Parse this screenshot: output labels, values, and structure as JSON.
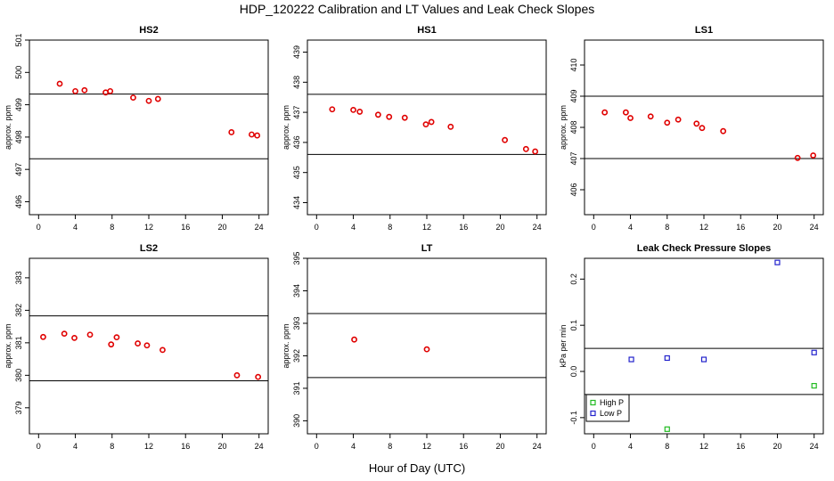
{
  "figure": {
    "title": "HDP_120222  Calibration and LT Values and Leak Check Slopes",
    "xlabel": "Hour of Day (UTC)"
  },
  "colors": {
    "points": "#e00000",
    "axis": "#000000",
    "high_p": "#22bb22",
    "low_p": "#2222cc"
  },
  "chart_data": [
    {
      "type": "scatter",
      "title": "HS2",
      "ylabel": "approx. ppm",
      "xlim": [
        -1,
        25
      ],
      "ylim": [
        495.6,
        501
      ],
      "xticks": [
        0,
        4,
        8,
        12,
        16,
        20,
        24
      ],
      "yticks": [
        496,
        497,
        498,
        499,
        500,
        501
      ],
      "hlines": [
        499.33,
        497.33
      ],
      "x": [
        2.3,
        4.0,
        5.0,
        7.3,
        7.8,
        10.3,
        12.0,
        13.0,
        21.0,
        23.2,
        23.8
      ],
      "y": [
        499.65,
        499.42,
        499.45,
        499.38,
        499.42,
        499.22,
        499.12,
        499.18,
        498.15,
        498.08,
        498.05
      ]
    },
    {
      "type": "scatter",
      "title": "HS1",
      "ylabel": "approx. ppm",
      "xlim": [
        -1,
        25
      ],
      "ylim": [
        433.6,
        439.4
      ],
      "xticks": [
        0,
        4,
        8,
        12,
        16,
        20,
        24
      ],
      "yticks": [
        434,
        435,
        436,
        437,
        438,
        439
      ],
      "hlines": [
        437.6,
        435.6
      ],
      "x": [
        1.7,
        4.0,
        4.7,
        6.7,
        7.9,
        9.6,
        11.9,
        12.5,
        14.6,
        20.5,
        22.8,
        23.8
      ],
      "y": [
        437.1,
        437.08,
        437.02,
        436.92,
        436.85,
        436.82,
        436.6,
        436.68,
        436.52,
        436.08,
        435.78,
        435.7
      ]
    },
    {
      "type": "scatter",
      "title": "LS1",
      "ylabel": "approx. ppm",
      "xlim": [
        -1,
        25
      ],
      "ylim": [
        405.2,
        410.8
      ],
      "xticks": [
        0,
        4,
        8,
        12,
        16,
        20,
        24
      ],
      "yticks": [
        406,
        407,
        408,
        409,
        410
      ],
      "hlines": [
        409,
        407
      ],
      "x": [
        1.2,
        3.5,
        4.0,
        6.2,
        8.0,
        9.2,
        11.2,
        11.8,
        14.1,
        22.2,
        23.9
      ],
      "y": [
        408.48,
        408.48,
        408.3,
        408.35,
        408.15,
        408.25,
        408.12,
        407.98,
        407.88,
        407.02,
        407.1
      ]
    },
    {
      "type": "scatter",
      "title": "LS2",
      "ylabel": "approx. ppm",
      "xlim": [
        -1,
        25
      ],
      "ylim": [
        378.2,
        383.6
      ],
      "xticks": [
        0,
        4,
        8,
        12,
        16,
        20,
        24
      ],
      "yticks": [
        379,
        380,
        381,
        382,
        383
      ],
      "hlines": [
        381.83,
        379.83
      ],
      "x": [
        0.5,
        2.8,
        3.9,
        5.6,
        7.9,
        8.5,
        10.8,
        11.8,
        13.5,
        21.6,
        23.9
      ],
      "y": [
        381.18,
        381.28,
        381.15,
        381.25,
        380.95,
        381.17,
        380.98,
        380.92,
        380.78,
        380.0,
        379.95
      ]
    },
    {
      "type": "scatter",
      "title": "LT",
      "ylabel": "approx. ppm",
      "xlim": [
        -1,
        25
      ],
      "ylim": [
        389.6,
        395
      ],
      "xticks": [
        0,
        4,
        8,
        12,
        16,
        20,
        24
      ],
      "yticks": [
        390,
        391,
        392,
        393,
        394,
        395
      ],
      "hlines": [
        393.3,
        391.33
      ],
      "x": [
        4.1,
        12.0
      ],
      "y": [
        392.5,
        392.2
      ]
    },
    {
      "type": "scatter",
      "title": "Leak Check Pressure Slopes",
      "ylabel": "kPa per min",
      "xlim": [
        -1,
        25
      ],
      "ylim": [
        -0.135,
        0.245
      ],
      "xticks": [
        0,
        4,
        8,
        12,
        16,
        20,
        24
      ],
      "yticks": [
        -0.1,
        0.0,
        0.1,
        0.2
      ],
      "ytick_labels": [
        "-0.1",
        "0.0",
        "0.1",
        "0.2"
      ],
      "hlines": [
        0.05,
        -0.05
      ],
      "legend": [
        "High P",
        "Low P"
      ],
      "legend_position": "bottom-left",
      "series": [
        {
          "name": "High P",
          "x": [
            8.0,
            24.0
          ],
          "y": [
            -0.125,
            -0.031
          ]
        },
        {
          "name": "Low P",
          "x": [
            4.1,
            8.0,
            12.0,
            20.0,
            24.0
          ],
          "y": [
            0.026,
            0.029,
            0.026,
            0.236,
            0.041
          ]
        }
      ]
    }
  ]
}
